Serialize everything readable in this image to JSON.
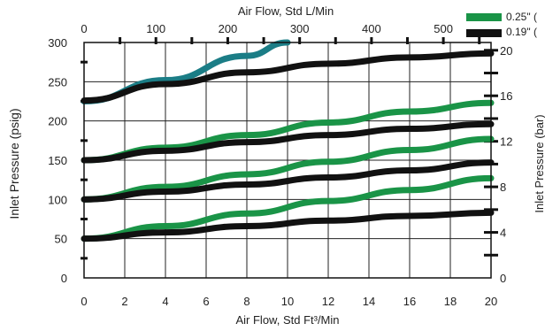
{
  "chart_data": {
    "type": "line",
    "title": "",
    "xlabel": "Air Flow, Std Ft³/Min",
    "x2label": "Air Flow, Std L/Min",
    "ylabel": "Inlet Pressure (psig)",
    "y2label": "Inlet Pressure (bar)",
    "xlim": [
      0,
      20
    ],
    "ylim": [
      0,
      300
    ],
    "x_ticks": [
      "0",
      "2",
      "4",
      "6",
      "8",
      "10",
      "12",
      "14",
      "16",
      "18",
      "20"
    ],
    "y_ticks": [
      "0",
      "50",
      "100",
      "150",
      "200",
      "250",
      "300"
    ],
    "x2_ticks": [
      "0",
      "100",
      "200",
      "300",
      "400",
      "500"
    ],
    "y2_ticks": [
      "0",
      "4",
      "8",
      "12",
      "16",
      "20"
    ],
    "grid": true,
    "legend": [
      {
        "label": "0.25\" (",
        "color": "#1a9447"
      },
      {
        "label": "0.19\" (",
        "color": "#111111"
      }
    ],
    "series": [
      {
        "color": "#1a9447",
        "x": [
          0,
          4,
          8,
          12,
          16,
          20
        ],
        "y": [
          50,
          66,
          82,
          98,
          112,
          127
        ]
      },
      {
        "color": "#1a9447",
        "x": [
          0,
          4,
          8,
          12,
          16,
          20
        ],
        "y": [
          100,
          116,
          132,
          148,
          163,
          177
        ]
      },
      {
        "color": "#1a9447",
        "x": [
          0,
          4,
          8,
          12,
          16,
          20
        ],
        "y": [
          150,
          166,
          182,
          198,
          212,
          223
        ]
      },
      {
        "color": "#1b7d86",
        "x": [
          0,
          4,
          8,
          10
        ],
        "y": [
          225,
          252,
          283,
          300
        ]
      },
      {
        "color": "#111111",
        "x": [
          0,
          4,
          8,
          12,
          16,
          20
        ],
        "y": [
          50,
          58,
          66,
          73,
          79,
          83
        ]
      },
      {
        "color": "#111111",
        "x": [
          0,
          4,
          8,
          12,
          16,
          20
        ],
        "y": [
          100,
          110,
          119,
          128,
          137,
          147
        ]
      },
      {
        "color": "#111111",
        "x": [
          0,
          4,
          8,
          12,
          16,
          20
        ],
        "y": [
          150,
          162,
          173,
          182,
          190,
          196
        ]
      },
      {
        "color": "#111111",
        "x": [
          0,
          4,
          8,
          12,
          16,
          20
        ],
        "y": [
          226,
          247,
          262,
          273,
          281,
          286
        ]
      }
    ]
  }
}
